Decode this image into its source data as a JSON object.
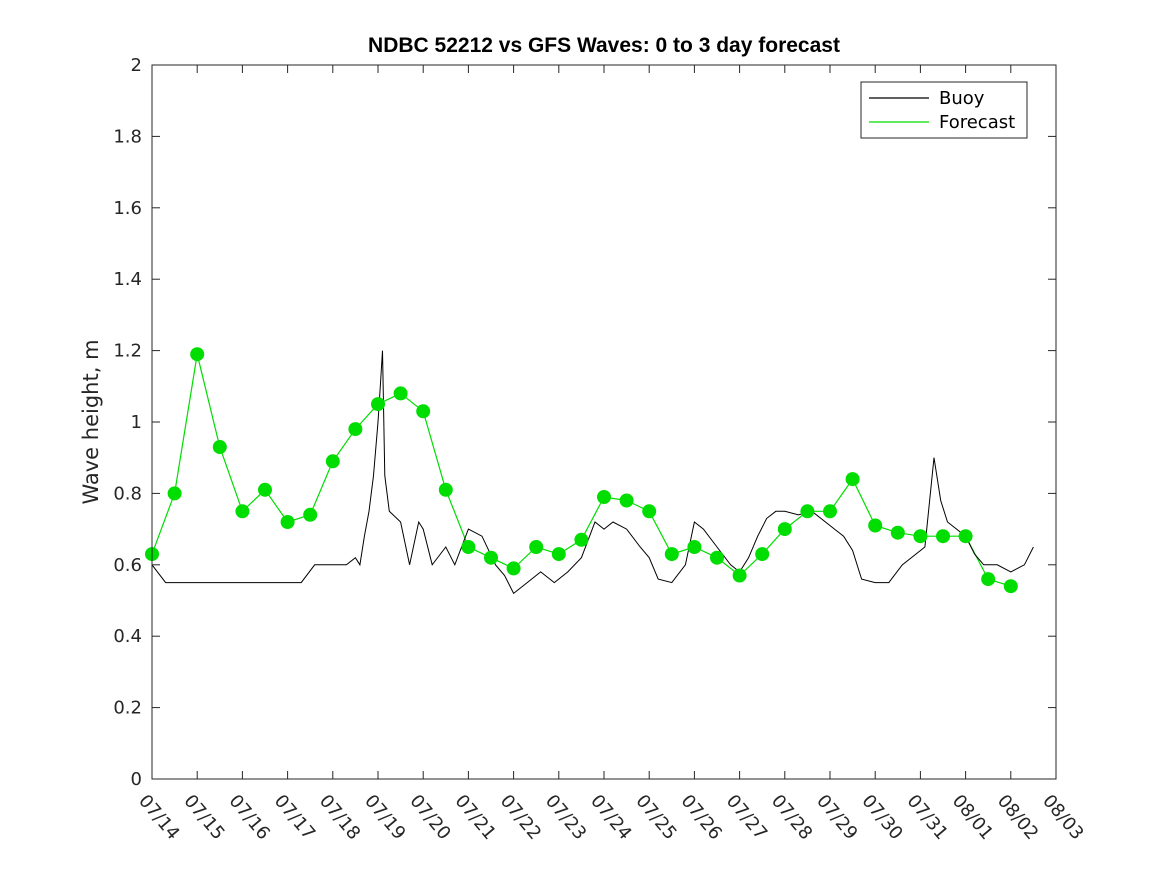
{
  "chart_data": {
    "type": "line",
    "title": "NDBC 52212 vs GFS Waves: 0 to 3 day forecast",
    "xlabel": "",
    "ylabel": "Wave height, m",
    "xlim": [
      "07/14",
      "08/03"
    ],
    "ylim": [
      0,
      2
    ],
    "yticks": [
      0,
      0.2,
      0.4,
      0.6,
      0.8,
      1,
      1.2,
      1.4,
      1.6,
      1.8,
      2
    ],
    "ytick_labels": [
      "0",
      "0.2",
      "0.4",
      "0.6",
      "0.8",
      "1",
      "1.2",
      "1.4",
      "1.6",
      "1.8",
      "2"
    ],
    "xtick_labels": [
      "07/14",
      "07/15",
      "07/16",
      "07/17",
      "07/18",
      "07/19",
      "07/20",
      "07/21",
      "07/22",
      "07/23",
      "07/24",
      "07/25",
      "07/26",
      "07/27",
      "07/28",
      "07/29",
      "07/30",
      "07/31",
      "08/01",
      "08/02",
      "08/03"
    ],
    "grid": false,
    "legend": {
      "placement": "top-right",
      "entries": [
        {
          "label": "Buoy",
          "color": "#000000"
        },
        {
          "label": "Forecast",
          "color": "#00dd00"
        }
      ]
    },
    "series": [
      {
        "name": "Buoy",
        "color": "#000000",
        "points": [
          [
            0.0,
            0.6
          ],
          [
            0.3,
            0.55
          ],
          [
            0.6,
            0.55
          ],
          [
            1.0,
            0.55
          ],
          [
            1.3,
            0.55
          ],
          [
            1.6,
            0.55
          ],
          [
            2.0,
            0.55
          ],
          [
            2.3,
            0.55
          ],
          [
            2.6,
            0.55
          ],
          [
            3.0,
            0.55
          ],
          [
            3.3,
            0.55
          ],
          [
            3.6,
            0.6
          ],
          [
            4.0,
            0.6
          ],
          [
            4.3,
            0.6
          ],
          [
            4.5,
            0.62
          ],
          [
            4.6,
            0.6
          ],
          [
            4.7,
            0.68
          ],
          [
            4.8,
            0.75
          ],
          [
            4.9,
            0.85
          ],
          [
            5.0,
            1.0
          ],
          [
            5.05,
            1.1
          ],
          [
            5.1,
            1.2
          ],
          [
            5.15,
            0.85
          ],
          [
            5.25,
            0.75
          ],
          [
            5.5,
            0.72
          ],
          [
            5.7,
            0.6
          ],
          [
            5.9,
            0.72
          ],
          [
            6.0,
            0.7
          ],
          [
            6.2,
            0.6
          ],
          [
            6.5,
            0.65
          ],
          [
            6.7,
            0.6
          ],
          [
            7.0,
            0.7
          ],
          [
            7.3,
            0.68
          ],
          [
            7.6,
            0.6
          ],
          [
            7.8,
            0.57
          ],
          [
            8.0,
            0.52
          ],
          [
            8.3,
            0.55
          ],
          [
            8.6,
            0.58
          ],
          [
            8.9,
            0.55
          ],
          [
            9.2,
            0.58
          ],
          [
            9.5,
            0.62
          ],
          [
            9.8,
            0.72
          ],
          [
            10.0,
            0.7
          ],
          [
            10.2,
            0.72
          ],
          [
            10.5,
            0.7
          ],
          [
            10.8,
            0.65
          ],
          [
            11.0,
            0.62
          ],
          [
            11.2,
            0.56
          ],
          [
            11.5,
            0.55
          ],
          [
            11.8,
            0.6
          ],
          [
            12.0,
            0.72
          ],
          [
            12.2,
            0.7
          ],
          [
            12.5,
            0.65
          ],
          [
            12.8,
            0.6
          ],
          [
            13.0,
            0.58
          ],
          [
            13.2,
            0.62
          ],
          [
            13.4,
            0.68
          ],
          [
            13.6,
            0.73
          ],
          [
            13.8,
            0.75
          ],
          [
            14.0,
            0.75
          ],
          [
            14.3,
            0.74
          ],
          [
            14.6,
            0.75
          ],
          [
            14.9,
            0.72
          ],
          [
            15.1,
            0.7
          ],
          [
            15.3,
            0.68
          ],
          [
            15.5,
            0.64
          ],
          [
            15.7,
            0.56
          ],
          [
            16.0,
            0.55
          ],
          [
            16.3,
            0.55
          ],
          [
            16.6,
            0.6
          ],
          [
            16.9,
            0.63
          ],
          [
            17.1,
            0.65
          ],
          [
            17.3,
            0.9
          ],
          [
            17.45,
            0.78
          ],
          [
            17.6,
            0.72
          ],
          [
            17.8,
            0.7
          ],
          [
            18.0,
            0.68
          ],
          [
            18.2,
            0.63
          ],
          [
            18.4,
            0.6
          ],
          [
            18.7,
            0.6
          ],
          [
            19.0,
            0.58
          ],
          [
            19.3,
            0.6
          ],
          [
            19.5,
            0.65
          ]
        ]
      },
      {
        "name": "Forecast",
        "color": "#00dd00",
        "points": [
          [
            0.0,
            0.63
          ],
          [
            0.5,
            0.8
          ],
          [
            1.0,
            1.19
          ],
          [
            1.5,
            0.93
          ],
          [
            2.0,
            0.75
          ],
          [
            2.5,
            0.81
          ],
          [
            3.0,
            0.72
          ],
          [
            3.5,
            0.74
          ],
          [
            4.0,
            0.89
          ],
          [
            4.5,
            0.98
          ],
          [
            5.0,
            1.05
          ],
          [
            5.5,
            1.08
          ],
          [
            6.0,
            1.03
          ],
          [
            6.5,
            0.81
          ],
          [
            7.0,
            0.65
          ],
          [
            7.5,
            0.62
          ],
          [
            8.0,
            0.59
          ],
          [
            8.5,
            0.65
          ],
          [
            9.0,
            0.63
          ],
          [
            9.5,
            0.67
          ],
          [
            10.0,
            0.79
          ],
          [
            10.5,
            0.78
          ],
          [
            11.0,
            0.75
          ],
          [
            11.5,
            0.63
          ],
          [
            12.0,
            0.65
          ],
          [
            12.5,
            0.62
          ],
          [
            13.0,
            0.57
          ],
          [
            13.5,
            0.63
          ],
          [
            14.0,
            0.7
          ],
          [
            14.5,
            0.75
          ],
          [
            15.0,
            0.75
          ],
          [
            15.5,
            0.84
          ],
          [
            16.0,
            0.71
          ],
          [
            16.5,
            0.69
          ],
          [
            17.0,
            0.68
          ],
          [
            17.5,
            0.68
          ],
          [
            18.0,
            0.68
          ],
          [
            18.5,
            0.56
          ],
          [
            19.0,
            0.54
          ]
        ]
      }
    ]
  }
}
